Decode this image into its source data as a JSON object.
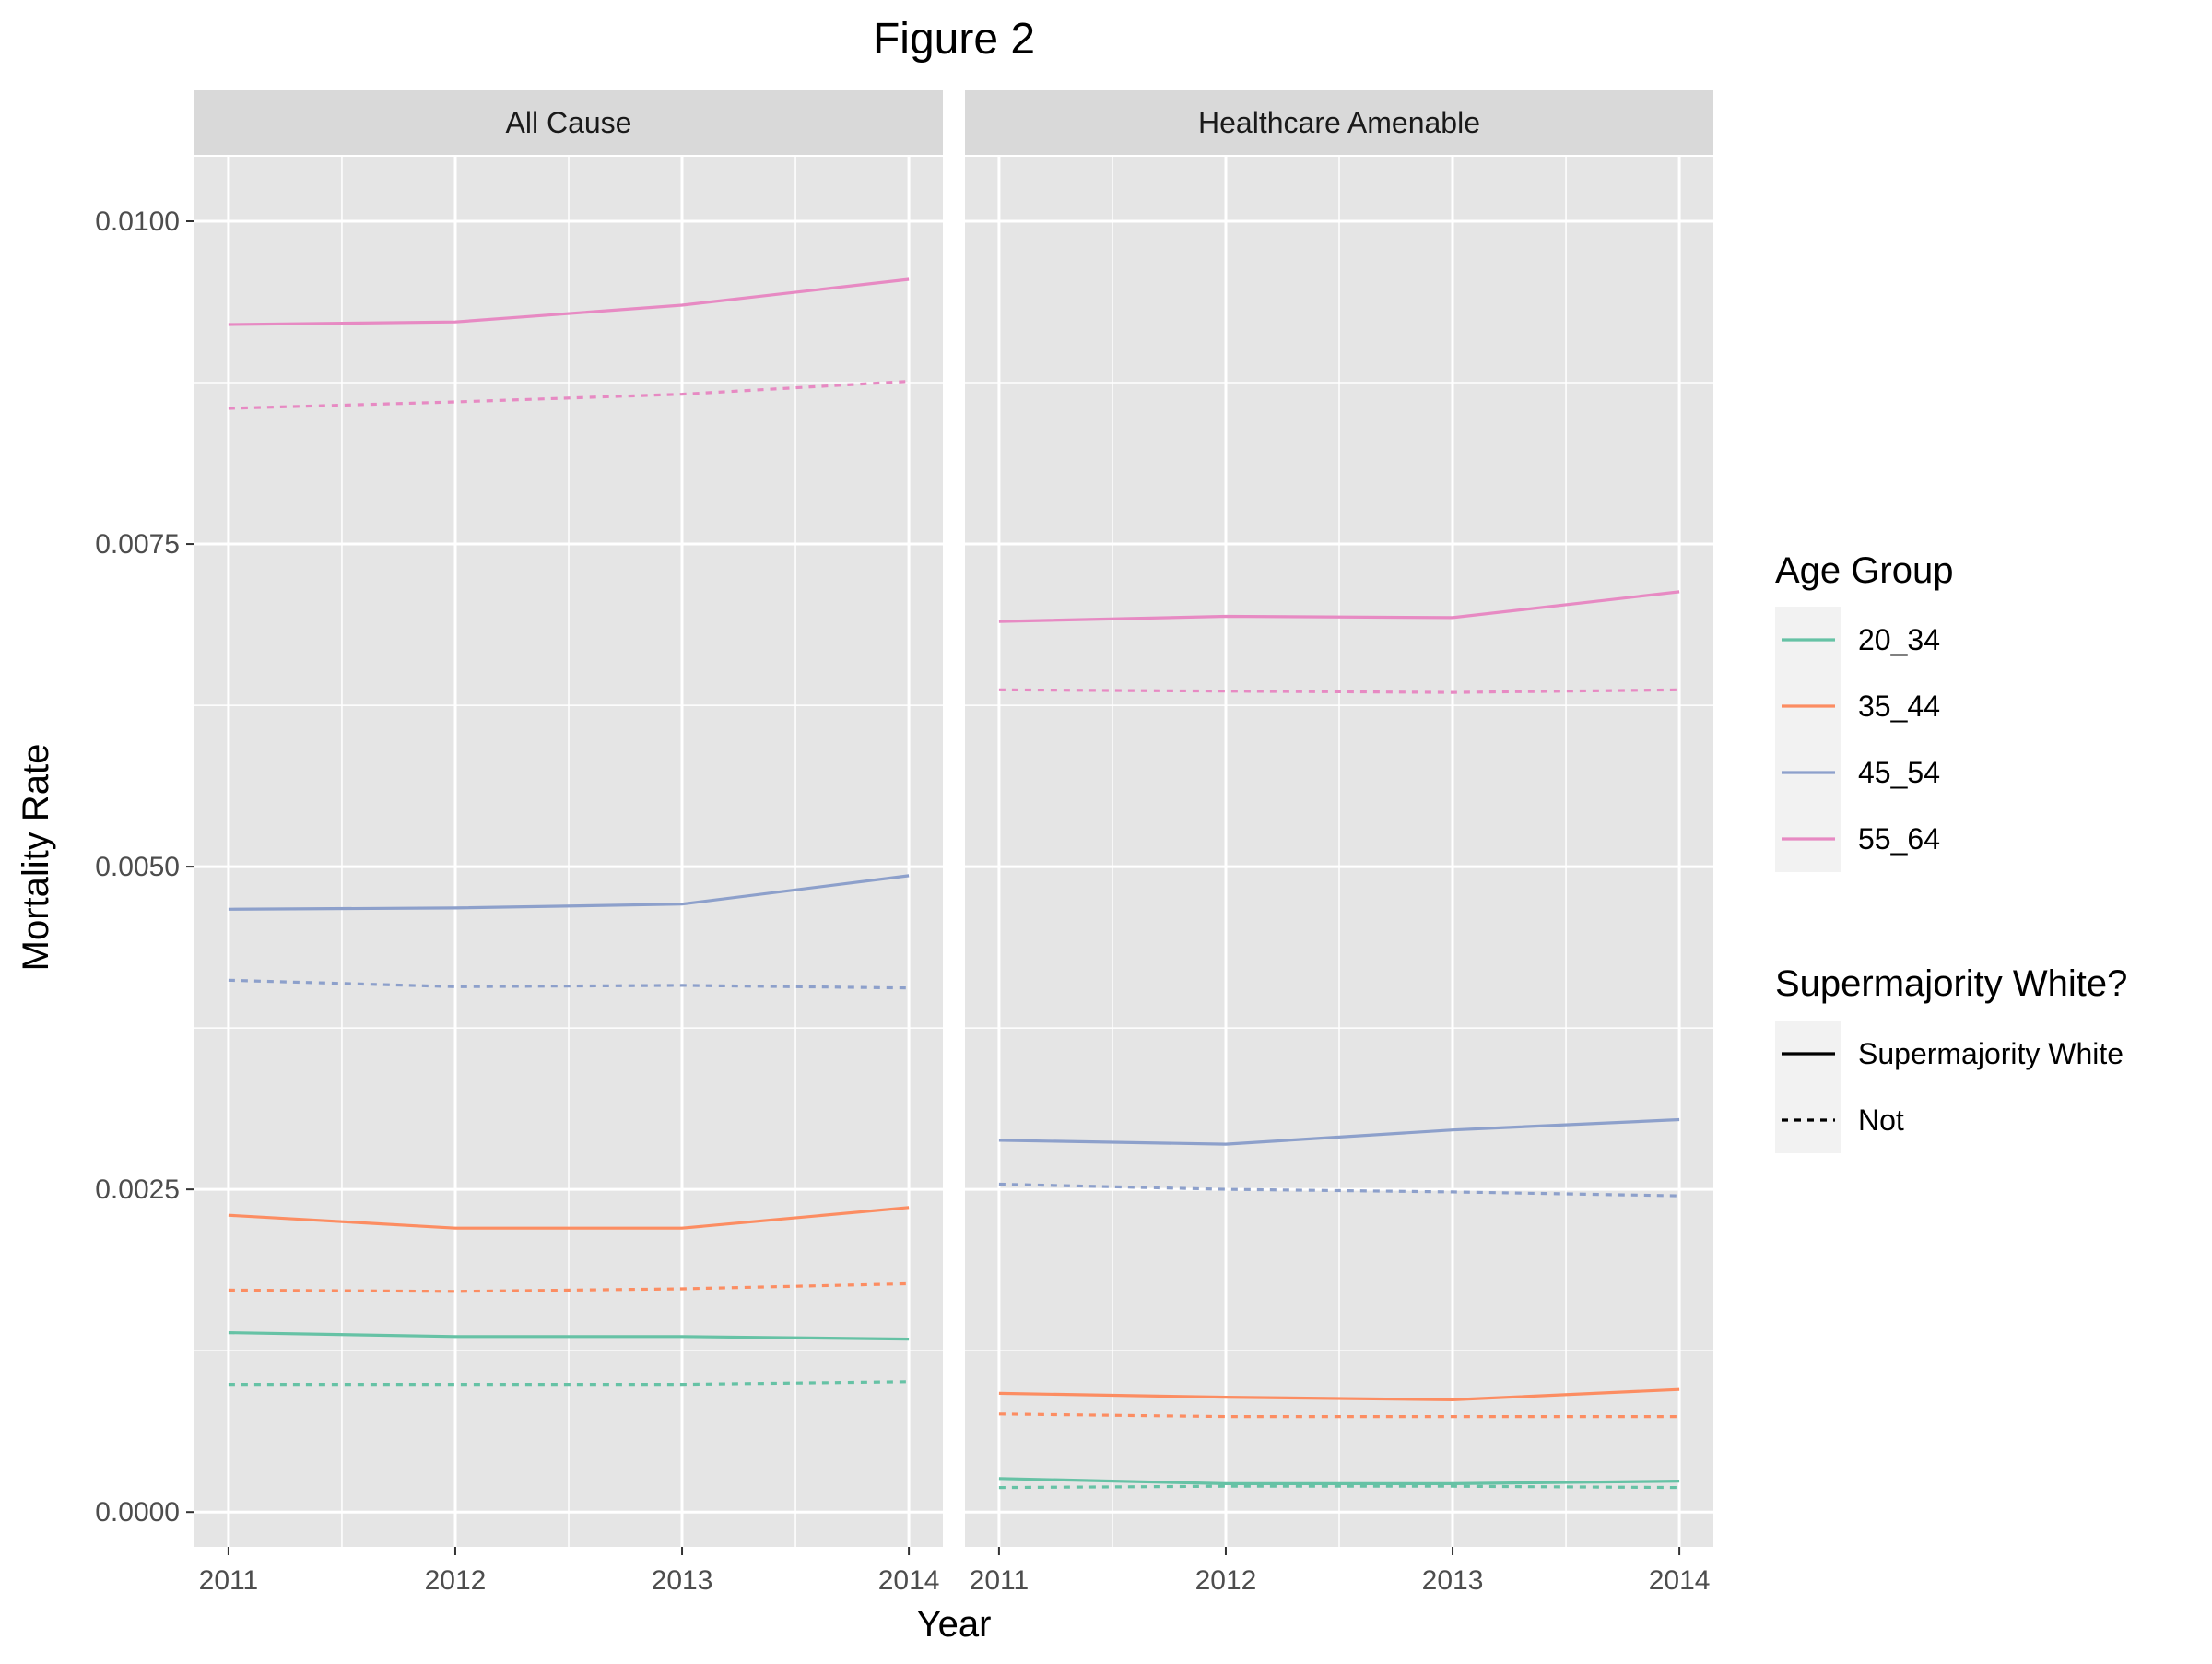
{
  "chart_data": {
    "type": "line",
    "title": "Figure 2",
    "xlabel": "Year",
    "ylabel": "Mortality Rate",
    "x": [
      2011,
      2012,
      2013,
      2014
    ],
    "x_tick_labels": [
      "2011",
      "2012",
      "2013",
      "2014"
    ],
    "ylim": [
      -0.00027,
      0.0105
    ],
    "y_ticks": [
      0.0,
      0.0025,
      0.005,
      0.0075,
      0.01
    ],
    "y_tick_labels": [
      "0.0000",
      "0.0025",
      "0.0050",
      "0.0075",
      "0.0100"
    ],
    "grid": true,
    "legend_placement": "right",
    "panels": [
      {
        "label": "All Cause",
        "series": [
          {
            "age_group": "20_34",
            "supermajority": "Supermajority White",
            "values": [
              0.00139,
              0.00136,
              0.00136,
              0.00134
            ]
          },
          {
            "age_group": "20_34",
            "supermajority": "Not",
            "values": [
              0.00099,
              0.00099,
              0.00099,
              0.00101
            ]
          },
          {
            "age_group": "35_44",
            "supermajority": "Supermajority White",
            "values": [
              0.0023,
              0.0022,
              0.0022,
              0.00236
            ]
          },
          {
            "age_group": "35_44",
            "supermajority": "Not",
            "values": [
              0.00172,
              0.00171,
              0.00173,
              0.00177
            ]
          },
          {
            "age_group": "45_54",
            "supermajority": "Supermajority White",
            "values": [
              0.00467,
              0.00468,
              0.00471,
              0.00493
            ]
          },
          {
            "age_group": "45_54",
            "supermajority": "Not",
            "values": [
              0.00412,
              0.00407,
              0.00408,
              0.00406
            ]
          },
          {
            "age_group": "55_64",
            "supermajority": "Supermajority White",
            "values": [
              0.0092,
              0.00922,
              0.00935,
              0.00955
            ]
          },
          {
            "age_group": "55_64",
            "supermajority": "Not",
            "values": [
              0.00855,
              0.0086,
              0.00866,
              0.00876
            ]
          }
        ]
      },
      {
        "label": "Healthcare Amenable",
        "series": [
          {
            "age_group": "20_34",
            "supermajority": "Supermajority White",
            "values": [
              0.00026,
              0.00022,
              0.00022,
              0.00024
            ]
          },
          {
            "age_group": "20_34",
            "supermajority": "Not",
            "values": [
              0.00019,
              0.0002,
              0.0002,
              0.00019
            ]
          },
          {
            "age_group": "35_44",
            "supermajority": "Supermajority White",
            "values": [
              0.00092,
              0.00089,
              0.00087,
              0.00095
            ]
          },
          {
            "age_group": "35_44",
            "supermajority": "Not",
            "values": [
              0.00076,
              0.00074,
              0.00074,
              0.00074
            ]
          },
          {
            "age_group": "45_54",
            "supermajority": "Supermajority White",
            "values": [
              0.00288,
              0.00285,
              0.00296,
              0.00304
            ]
          },
          {
            "age_group": "45_54",
            "supermajority": "Not",
            "values": [
              0.00254,
              0.0025,
              0.00248,
              0.00245
            ]
          },
          {
            "age_group": "55_64",
            "supermajority": "Supermajority White",
            "values": [
              0.0069,
              0.00694,
              0.00693,
              0.00713
            ]
          },
          {
            "age_group": "55_64",
            "supermajority": "Not",
            "values": [
              0.00637,
              0.00636,
              0.00635,
              0.00637
            ]
          }
        ]
      }
    ],
    "legend": {
      "age_group": {
        "title": "Age Group",
        "items": [
          {
            "label": "20_34",
            "color": "#66c2a5"
          },
          {
            "label": "35_44",
            "color": "#fc8d62"
          },
          {
            "label": "45_54",
            "color": "#8da0cb"
          },
          {
            "label": "55_64",
            "color": "#e78ac3"
          }
        ]
      },
      "supermajority": {
        "title": "Supermajority White?",
        "items": [
          {
            "label": "Supermajority White",
            "linetype": "solid"
          },
          {
            "label": "Not",
            "linetype": "dashed"
          }
        ]
      }
    },
    "colors": {
      "panel_background": "#e5e5e5",
      "strip_background": "#d9d9d9",
      "grid": "#ffffff",
      "legend_key_background": "#f2f2f2"
    }
  }
}
